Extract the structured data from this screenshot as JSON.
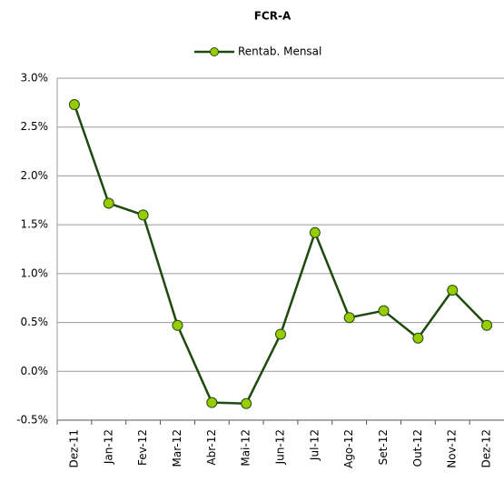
{
  "chart_data": {
    "type": "line",
    "title": "FCR-A",
    "categories": [
      "Dez-11",
      "Jan-12",
      "Fev-12",
      "Mar-12",
      "Abr-12",
      "Mai-12",
      "Jun-12",
      "Jul-12",
      "Ago-12",
      "Set-12",
      "Out-12",
      "Nov-12",
      "Dez-12"
    ],
    "series": [
      {
        "name": "Rentab. Mensal",
        "color": "#1f4a0f",
        "marker_color": "#99cc00",
        "values": [
          2.73,
          1.72,
          1.6,
          0.47,
          -0.32,
          -0.33,
          0.38,
          1.42,
          0.55,
          0.62,
          0.34,
          0.83,
          0.47
        ]
      }
    ],
    "ylim": [
      -0.5,
      3.0
    ],
    "yticks": [
      {
        "value": -0.5,
        "label": "-0.5%"
      },
      {
        "value": 0.0,
        "label": "0.0%"
      },
      {
        "value": 0.5,
        "label": "0.5%"
      },
      {
        "value": 1.0,
        "label": "1.0%"
      },
      {
        "value": 1.5,
        "label": "1.5%"
      },
      {
        "value": 2.0,
        "label": "2.0%"
      },
      {
        "value": 2.5,
        "label": "2.5%"
      },
      {
        "value": 3.0,
        "label": "3.0%"
      }
    ],
    "grid": true,
    "legend": "top"
  }
}
